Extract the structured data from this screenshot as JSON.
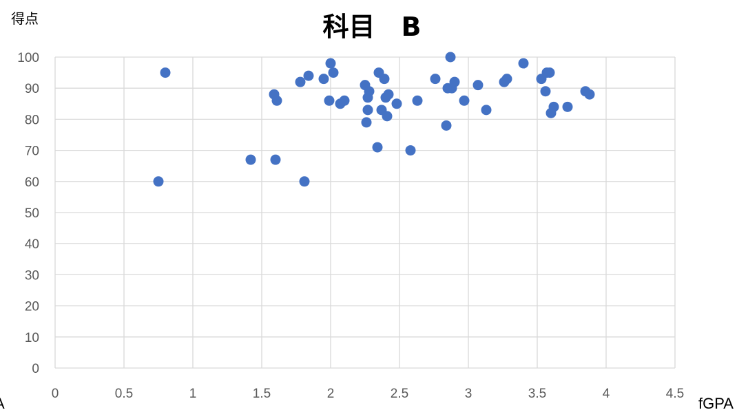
{
  "chart_data": {
    "type": "scatter",
    "title": "科目　B",
    "ylabel": "得点",
    "xlabel": "fGPA",
    "left_edge_label": "A",
    "xlim": [
      0,
      4.5
    ],
    "ylim": [
      0,
      100
    ],
    "x_ticks": [
      "0",
      "0.5",
      "1",
      "1.5",
      "2",
      "2.5",
      "3",
      "3.5",
      "4",
      "4.5"
    ],
    "y_ticks": [
      "0",
      "10",
      "20",
      "30",
      "40",
      "50",
      "60",
      "70",
      "80",
      "90",
      "100"
    ],
    "grid": true,
    "point_color": "#4472c4",
    "points": [
      [
        0.75,
        60
      ],
      [
        0.8,
        95
      ],
      [
        1.42,
        67
      ],
      [
        1.59,
        88
      ],
      [
        1.6,
        67
      ],
      [
        1.61,
        86
      ],
      [
        1.78,
        92
      ],
      [
        1.81,
        60
      ],
      [
        1.84,
        94
      ],
      [
        1.95,
        93
      ],
      [
        1.99,
        86
      ],
      [
        2.0,
        98
      ],
      [
        2.02,
        95
      ],
      [
        2.07,
        85
      ],
      [
        2.1,
        86
      ],
      [
        2.25,
        91
      ],
      [
        2.26,
        79
      ],
      [
        2.27,
        83
      ],
      [
        2.27,
        87
      ],
      [
        2.28,
        89
      ],
      [
        2.34,
        71
      ],
      [
        2.35,
        95
      ],
      [
        2.37,
        83
      ],
      [
        2.39,
        93
      ],
      [
        2.4,
        87
      ],
      [
        2.41,
        81
      ],
      [
        2.42,
        88
      ],
      [
        2.48,
        85
      ],
      [
        2.58,
        70
      ],
      [
        2.63,
        86
      ],
      [
        2.76,
        93
      ],
      [
        2.84,
        78
      ],
      [
        2.85,
        90
      ],
      [
        2.87,
        100
      ],
      [
        2.88,
        90
      ],
      [
        2.9,
        92
      ],
      [
        2.97,
        86
      ],
      [
        3.07,
        91
      ],
      [
        3.13,
        83
      ],
      [
        3.26,
        92
      ],
      [
        3.28,
        93
      ],
      [
        3.4,
        98
      ],
      [
        3.53,
        93
      ],
      [
        3.56,
        89
      ],
      [
        3.57,
        95
      ],
      [
        3.59,
        95
      ],
      [
        3.6,
        82
      ],
      [
        3.62,
        84
      ],
      [
        3.72,
        84
      ],
      [
        3.85,
        89
      ],
      [
        3.88,
        88
      ]
    ]
  }
}
